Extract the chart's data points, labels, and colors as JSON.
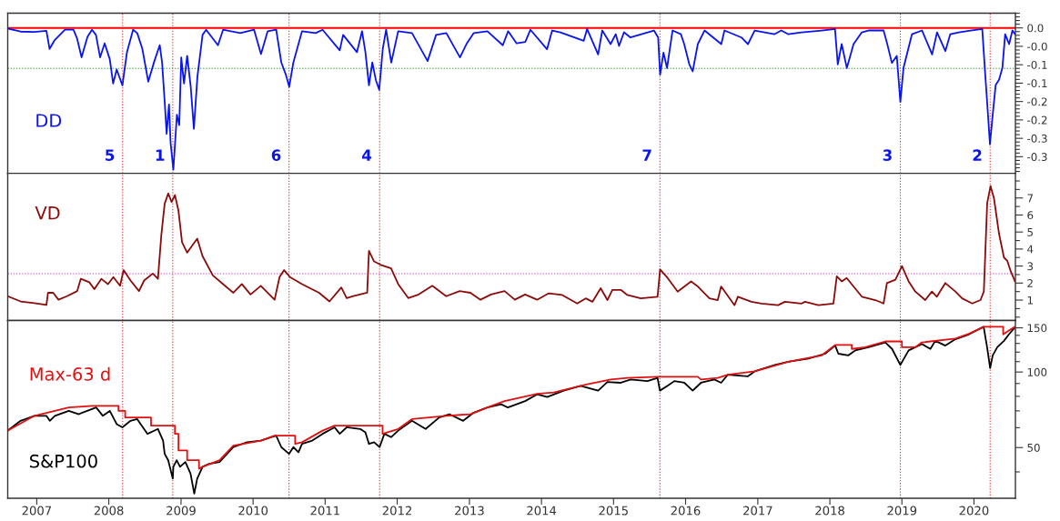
{
  "chart_data": [
    {
      "type": "line",
      "xlim": [
        "2006-08-07",
        "2020-07-29"
      ],
      "ylim": [
        -0.395,
        0.04
      ],
      "tick_labels": "y",
      "yticks": [
        {
          "value": 0.04,
          "label": null
        },
        {
          "value": 0.03,
          "label": null
        },
        {
          "value": 0.02,
          "label": null
        },
        {
          "value": 0.01,
          "label": null
        },
        {
          "value": 0,
          "label": "0.0"
        },
        {
          "value": -0.01,
          "label": null
        },
        {
          "value": -0.02,
          "label": null
        },
        {
          "value": -0.03,
          "label": null
        },
        {
          "value": -0.04,
          "label": null
        },
        {
          "value": -0.05,
          "label": "-0.0"
        },
        {
          "value": -0.06,
          "label": null
        },
        {
          "value": -0.07,
          "label": null
        },
        {
          "value": -0.08,
          "label": null
        },
        {
          "value": -0.09,
          "label": null
        },
        {
          "value": -0.1,
          "label": "-0.1"
        },
        {
          "value": -0.11,
          "label": null
        },
        {
          "value": -0.12,
          "label": null
        },
        {
          "value": -0.13,
          "label": null
        },
        {
          "value": -0.14,
          "label": null
        },
        {
          "value": -0.15,
          "label": "-0.1"
        },
        {
          "value": -0.16,
          "label": null
        },
        {
          "value": -0.17,
          "label": null
        },
        {
          "value": -0.18,
          "label": null
        },
        {
          "value": -0.19,
          "label": null
        },
        {
          "value": -0.2,
          "label": "-0.2"
        },
        {
          "value": -0.21,
          "label": null
        },
        {
          "value": -0.22,
          "label": null
        },
        {
          "value": -0.23,
          "label": null
        },
        {
          "value": -0.24,
          "label": null
        },
        {
          "value": -0.25,
          "label": "-0.2"
        },
        {
          "value": -0.26,
          "label": null
        },
        {
          "value": -0.27,
          "label": null
        },
        {
          "value": -0.28,
          "label": null
        },
        {
          "value": -0.29,
          "label": null
        },
        {
          "value": -0.3,
          "label": "-0.3"
        },
        {
          "value": -0.31,
          "label": null
        },
        {
          "value": -0.32,
          "label": null
        },
        {
          "value": -0.33,
          "label": null
        },
        {
          "value": -0.34,
          "label": null
        },
        {
          "value": -0.35,
          "label": "-0.3"
        },
        {
          "value": -0.36,
          "label": null
        },
        {
          "value": -0.37,
          "label": null
        },
        {
          "value": -0.38,
          "label": null
        },
        {
          "value": -0.39,
          "label": null
        }
      ],
      "ref_lines": [
        {
          "axis": "y",
          "value": 0,
          "color": "#ff0000",
          "line_style": "solid"
        },
        {
          "axis": "y",
          "value": -0.11,
          "color": "#2e9e2e",
          "line_style": "dotted"
        },
        {
          "axis": "x",
          "value": "2008-03-11",
          "label": "5",
          "color": "#e03c3c",
          "line_style": "dotted"
        },
        {
          "axis": "x",
          "value": "2008-11-20",
          "label": "1",
          "color": "#e03c3c",
          "line_style": "dotted"
        },
        {
          "axis": "x",
          "value": "2010-07-02",
          "label": "6",
          "color": "#e03c3c",
          "line_style": "dotted"
        },
        {
          "axis": "x",
          "value": "2011-10-04",
          "label": "4",
          "color": "#e03c3c",
          "line_style": "dotted"
        },
        {
          "axis": "x",
          "value": "2015-08-24",
          "label": "7",
          "color": "#e03c3c",
          "line_style": "dotted"
        },
        {
          "axis": "x",
          "value": "2018-12-24",
          "label": "3",
          "color": "#e03c3c",
          "line_style": "dotted"
        },
        {
          "axis": "x",
          "value": "2020-03-23",
          "label": "2",
          "color": "#e03c3c",
          "line_style": "dotted"
        }
      ],
      "series": [
        {
          "name": "DD",
          "color": "#0a14f0",
          "x": [
            "2006-08-07",
            "2006-10-11",
            "2006-12-19",
            "2007-02-19",
            "2007-03-07",
            "2007-04-02",
            "2007-05-24",
            "2007-07-06",
            "2007-07-24",
            "2007-08-16",
            "2007-09-15",
            "2007-10-08",
            "2007-10-28",
            "2007-11-18",
            "2007-12-11",
            "2008-01-06",
            "2008-01-23",
            "2008-02-10",
            "2008-03-10",
            "2008-04-02",
            "2008-05-03",
            "2008-05-24",
            "2008-06-19",
            "2008-07-19",
            "2008-08-19",
            "2008-09-15",
            "2008-09-27",
            "2008-10-11",
            "2008-10-20",
            "2008-11-01",
            "2008-11-09",
            "2008-11-23",
            "2008-12-11",
            "2008-12-23",
            "2009-01-02",
            "2009-01-16",
            "2009-02-01",
            "2009-02-19",
            "2009-03-07",
            "2009-03-25",
            "2009-04-20",
            "2009-05-08",
            "2009-07-07",
            "2009-08-02",
            "2009-10-28",
            "2010-01-06",
            "2010-02-10",
            "2010-03-16",
            "2010-04-28",
            "2010-05-24",
            "2010-06-16",
            "2010-07-03",
            "2010-07-24",
            "2010-09-06",
            "2010-11-14",
            "2010-12-19",
            "2011-03-16",
            "2011-04-02",
            "2011-06-11",
            "2011-07-07",
            "2011-07-24",
            "2011-08-11",
            "2011-08-28",
            "2011-09-15",
            "2011-10-02",
            "2011-10-20",
            "2011-11-06",
            "2011-12-02",
            "2012-01-06",
            "2012-03-16",
            "2012-06-03",
            "2012-07-16",
            "2012-09-06",
            "2012-11-14",
            "2012-12-19",
            "2013-01-23",
            "2013-04-02",
            "2013-06-19",
            "2013-07-16",
            "2013-08-28",
            "2013-10-11",
            "2013-11-06",
            "2014-01-29",
            "2014-02-24",
            "2014-04-07",
            "2014-08-03",
            "2014-08-20",
            "2014-10-15",
            "2014-11-05",
            "2014-12-17",
            "2015-01-12",
            "2015-01-29",
            "2015-02-23",
            "2015-03-28",
            "2015-07-25",
            "2015-08-15",
            "2015-08-25",
            "2015-09-11",
            "2015-09-29",
            "2015-10-27",
            "2015-12-08",
            "2015-12-25",
            "2016-01-20",
            "2016-02-06",
            "2016-03-03",
            "2016-04-06",
            "2016-06-30",
            "2016-07-16",
            "2016-10-10",
            "2016-11-12",
            "2016-12-16",
            "2017-03-27",
            "2017-04-30",
            "2017-06-03",
            "2017-08-10",
            "2017-11-20",
            "2018-01-27",
            "2018-02-10",
            "2018-03-02",
            "2018-03-28",
            "2018-05-01",
            "2018-06-12",
            "2018-07-15",
            "2018-09-30",
            "2018-10-17",
            "2018-11-11",
            "2018-12-06",
            "2018-12-24",
            "2019-01-09",
            "2019-02-21",
            "2019-04-13",
            "2019-06-03",
            "2019-06-28",
            "2019-08-09",
            "2019-09-03",
            "2019-10-16",
            "2019-12-14",
            "2020-02-12",
            "2020-02-26",
            "2020-03-10",
            "2020-03-22",
            "2020-04-03",
            "2020-04-20",
            "2020-05-07",
            "2020-05-24",
            "2020-06-07",
            "2020-06-27",
            "2020-07-14",
            "2020-07-27"
          ],
          "values": [
            -0.002,
            -0.01,
            -0.011,
            -0.008,
            -0.057,
            -0.033,
            -0.005,
            -0.005,
            -0.028,
            -0.08,
            -0.024,
            -0.005,
            -0.019,
            -0.08,
            -0.042,
            -0.085,
            -0.151,
            -0.113,
            -0.156,
            -0.066,
            -0.005,
            -0.014,
            -0.057,
            -0.146,
            -0.09,
            -0.047,
            -0.094,
            -0.208,
            -0.288,
            -0.208,
            -0.312,
            -0.385,
            -0.236,
            -0.264,
            -0.08,
            -0.151,
            -0.076,
            -0.16,
            -0.274,
            -0.132,
            -0.019,
            -0.005,
            -0.047,
            -0.005,
            -0.014,
            -0.005,
            -0.071,
            -0.009,
            -0.005,
            -0.094,
            -0.127,
            -0.16,
            -0.094,
            -0.009,
            -0.014,
            -0.005,
            -0.061,
            -0.019,
            -0.066,
            -0.009,
            -0.066,
            -0.156,
            -0.094,
            -0.142,
            -0.168,
            -0.057,
            -0.005,
            -0.094,
            -0.009,
            -0.014,
            -0.09,
            -0.019,
            -0.014,
            -0.08,
            -0.042,
            -0.014,
            -0.009,
            -0.047,
            -0.009,
            -0.042,
            -0.038,
            -0.005,
            -0.058,
            -0.007,
            -0.012,
            -0.035,
            -0.003,
            -0.072,
            -0.007,
            -0.044,
            -0.017,
            -0.049,
            -0.012,
            -0.026,
            -0.007,
            -0.026,
            -0.127,
            -0.067,
            -0.109,
            -0.007,
            -0.017,
            -0.044,
            -0.099,
            -0.118,
            -0.044,
            -0.007,
            -0.044,
            -0.007,
            -0.026,
            -0.044,
            -0.007,
            -0.017,
            -0.007,
            -0.017,
            -0.012,
            -0.007,
            -0.003,
            -0.099,
            -0.044,
            -0.109,
            -0.044,
            -0.012,
            -0.007,
            -0.007,
            -0.04,
            -0.095,
            -0.076,
            -0.201,
            -0.109,
            -0.017,
            -0.007,
            -0.072,
            -0.012,
            -0.063,
            -0.017,
            -0.012,
            -0.007,
            -0.003,
            -0.118,
            -0.219,
            -0.316,
            -0.247,
            -0.155,
            -0.141,
            -0.109,
            -0.017,
            -0.044,
            -0.007,
            -0.017
          ]
        }
      ]
    },
    {
      "type": "line",
      "xlim": [
        "2006-08-07",
        "2020-07-29"
      ],
      "ylim": [
        -0.2,
        8.45
      ],
      "tick_labels": "y",
      "yticks": [
        {
          "value": 0,
          "label": null
        },
        {
          "value": 0.5,
          "label": null
        },
        1,
        {
          "value": 1.5,
          "label": null
        },
        2,
        {
          "value": 2.5,
          "label": null
        },
        3,
        {
          "value": 3.5,
          "label": null
        },
        4,
        {
          "value": 4.5,
          "label": null
        },
        5,
        {
          "value": 5.5,
          "label": null
        },
        6,
        {
          "value": 6.5,
          "label": null
        },
        7,
        {
          "value": 7.5,
          "label": null
        },
        {
          "value": 8,
          "label": null
        }
      ],
      "ref_lines": [
        {
          "axis": "y",
          "value": 2.55,
          "color": "#d040d0",
          "line_style": "dotted"
        },
        {
          "axis": "x",
          "value": "2008-03-11",
          "color": "#e03c3c",
          "line_style": "dotted"
        },
        {
          "axis": "x",
          "value": "2008-11-20",
          "color": "#e03c3c",
          "line_style": "dotted"
        },
        {
          "axis": "x",
          "value": "2010-07-02",
          "color": "#e03c3c",
          "line_style": "dotted"
        },
        {
          "axis": "x",
          "value": "2011-10-04",
          "color": "#e03c3c",
          "line_style": "dotted"
        },
        {
          "axis": "x",
          "value": "2015-08-24",
          "color": "#e03c3c",
          "line_style": "dotted"
        },
        {
          "axis": "x",
          "value": "2018-12-24",
          "color": "#e03c3c",
          "line_style": "dotted"
        },
        {
          "axis": "x",
          "value": "2020-03-23",
          "color": "#e03c3c",
          "line_style": "dotted"
        }
      ],
      "series": [
        {
          "name": "VD",
          "color": "#8b0a0a",
          "x": [
            "2006-08-07",
            "2006-10-11",
            "2006-12-20",
            "2007-02-19",
            "2007-02-27",
            "2007-03-25",
            "2007-04-21",
            "2007-06-03",
            "2007-07-25",
            "2007-08-12",
            "2007-09-24",
            "2007-10-20",
            "2007-11-24",
            "2007-12-28",
            "2008-01-24",
            "2008-02-27",
            "2008-03-16",
            "2008-04-20",
            "2008-06-02",
            "2008-06-28",
            "2008-08-11",
            "2008-09-06",
            "2008-09-23",
            "2008-10-10",
            "2008-10-28",
            "2008-11-14",
            "2008-12-01",
            "2008-12-19",
            "2009-01-06",
            "2009-02-01",
            "2009-02-26",
            "2009-03-24",
            "2009-04-20",
            "2009-06-11",
            "2009-08-02",
            "2009-09-23",
            "2009-11-05",
            "2009-12-19",
            "2010-02-09",
            "2010-04-20",
            "2010-05-15",
            "2010-06-07",
            "2010-07-07",
            "2010-09-06",
            "2010-12-01",
            "2011-01-23",
            "2011-03-24",
            "2011-04-20",
            "2011-05-24",
            "2011-08-02",
            "2011-08-11",
            "2011-09-06",
            "2011-10-10",
            "2011-12-01",
            "2012-01-06",
            "2012-02-26",
            "2012-04-19",
            "2012-06-27",
            "2012-09-05",
            "2012-11-13",
            "2013-01-06",
            "2013-02-26",
            "2013-04-20",
            "2013-06-28",
            "2013-08-19",
            "2013-10-10",
            "2013-12-10",
            "2014-02-07",
            "2014-04-16",
            "2014-07-01",
            "2014-08-13",
            "2014-09-16",
            "2014-10-28",
            "2014-12-01",
            "2014-12-26",
            "2015-02-07",
            "2015-03-12",
            "2015-05-19",
            "2015-08-12",
            "2015-08-25",
            "2015-10-02",
            "2015-11-22",
            "2016-01-29",
            "2016-03-03",
            "2016-05-01",
            "2016-06-12",
            "2016-06-29",
            "2016-09-05",
            "2016-09-22",
            "2016-11-29",
            "2017-01-20",
            "2017-04-14",
            "2017-05-18",
            "2017-08-11",
            "2017-08-28",
            "2017-11-04",
            "2018-01-19",
            "2018-02-05",
            "2018-03-02",
            "2018-03-27",
            "2018-06-12",
            "2018-08-19",
            "2018-09-30",
            "2018-10-17",
            "2018-11-29",
            "2019-01-01",
            "2019-02-04",
            "2019-03-10",
            "2019-04-29",
            "2019-06-02",
            "2019-06-27",
            "2019-08-09",
            "2019-09-29",
            "2019-11-02",
            "2019-12-23",
            "2020-02-03",
            "2020-02-20",
            "2020-03-08",
            "2020-03-25",
            "2020-04-11",
            "2020-05-07",
            "2020-06-01",
            "2020-06-18",
            "2020-07-05",
            "2020-07-27"
          ],
          "values": [
            1.23,
            0.92,
            0.82,
            0.71,
            1.43,
            1.43,
            1.02,
            1.23,
            1.53,
            2.25,
            2.05,
            1.64,
            2.25,
            1.94,
            2.35,
            1.84,
            2.76,
            2.15,
            1.53,
            2.15,
            2.56,
            2.25,
            4.81,
            6.66,
            7.27,
            6.76,
            7.17,
            6.25,
            4.4,
            3.79,
            4.2,
            4.61,
            3.58,
            2.45,
            1.94,
            1.43,
            1.94,
            1.33,
            1.84,
            1.02,
            2.35,
            2.76,
            2.35,
            1.94,
            1.43,
            0.92,
            1.74,
            1.12,
            1.23,
            1.43,
            3.89,
            3.27,
            3.07,
            2.86,
            1.94,
            1.12,
            1.33,
            1.84,
            1.23,
            1.53,
            1.43,
            1.02,
            1.33,
            1.53,
            1.02,
            1.33,
            1.02,
            1.4,
            1.3,
            0.8,
            1.1,
            0.9,
            1.7,
            1.0,
            1.6,
            1.6,
            1.3,
            1.1,
            1.2,
            2.8,
            2.3,
            1.5,
            2.1,
            1.8,
            1.1,
            1.0,
            1.8,
            0.7,
            1.2,
            0.9,
            0.8,
            0.7,
            0.9,
            0.8,
            0.9,
            0.7,
            0.8,
            2.4,
            2.1,
            2.3,
            1.2,
            1.0,
            0.8,
            2.0,
            2.2,
            3.0,
            2.1,
            1.5,
            1.0,
            1.5,
            1.2,
            2.0,
            1.5,
            1.1,
            0.8,
            1.0,
            1.5,
            6.7,
            7.7,
            7.0,
            4.9,
            3.5,
            3.3,
            2.7,
            2.1
          ]
        }
      ]
    },
    {
      "type": "line",
      "xlim": [
        "2006-08-07",
        "2020-07-29"
      ],
      "ylim": [
        31.4,
        160.4
      ],
      "log": true,
      "xticks": [
        "2007",
        "2008",
        "2009",
        "2010",
        "2011",
        "2012",
        "2013",
        "2014",
        "2015",
        "2016",
        "2017",
        "2018",
        "2019",
        "2020"
      ],
      "yticks": [
        {
          "value": 40,
          "label": null
        },
        50,
        {
          "value": 60,
          "label": null
        },
        {
          "value": 70,
          "label": null
        },
        {
          "value": 80,
          "label": null
        },
        {
          "value": 90,
          "label": null
        },
        100,
        {
          "value": 110,
          "label": null
        },
        {
          "value": 120,
          "label": null
        },
        {
          "value": 130,
          "label": null
        },
        {
          "value": 140,
          "label": null
        },
        150
      ],
      "ref_lines": [
        {
          "axis": "x",
          "value": "2008-03-11",
          "color": "#e03c3c",
          "line_style": "dotted"
        },
        {
          "axis": "x",
          "value": "2008-11-20",
          "color": "#e03c3c",
          "line_style": "dotted"
        },
        {
          "axis": "x",
          "value": "2010-07-02",
          "color": "#e03c3c",
          "line_style": "dotted"
        },
        {
          "axis": "x",
          "value": "2011-10-04",
          "color": "#e03c3c",
          "line_style": "dotted"
        },
        {
          "axis": "x",
          "value": "2015-08-24",
          "color": "#e03c3c",
          "line_style": "dotted"
        },
        {
          "axis": "x",
          "value": "2018-12-24",
          "color": "#e03c3c",
          "line_style": "dotted"
        },
        {
          "axis": "x",
          "value": "2020-03-23",
          "color": "#e03c3c",
          "line_style": "dotted"
        }
      ],
      "series": [
        {
          "name": "S&P100",
          "color": "#000000",
          "x": [
            "2006-08-07",
            "2006-10-11",
            "2006-12-20",
            "2007-02-19",
            "2007-03-08",
            "2007-04-03",
            "2007-06-12",
            "2007-08-03",
            "2007-08-20",
            "2007-10-29",
            "2007-12-02",
            "2008-01-06",
            "2008-02-10",
            "2008-03-10",
            "2008-04-20",
            "2008-05-24",
            "2008-07-15",
            "2008-09-06",
            "2008-10-02",
            "2008-10-10",
            "2008-10-28",
            "2008-11-20",
            "2008-11-23",
            "2008-12-10",
            "2008-12-27",
            "2009-01-23",
            "2009-02-18",
            "2009-03-09",
            "2009-03-24",
            "2009-04-20",
            "2009-05-24",
            "2009-07-15",
            "2009-09-23",
            "2009-12-01",
            "2010-02-09",
            "2010-04-02",
            "2010-04-28",
            "2010-05-24",
            "2010-07-02",
            "2010-07-24",
            "2010-08-19",
            "2010-09-06",
            "2010-10-28",
            "2010-12-19",
            "2011-02-18",
            "2011-03-16",
            "2011-04-20",
            "2011-06-28",
            "2011-07-24",
            "2011-08-11",
            "2011-09-06",
            "2011-10-04",
            "2011-10-28",
            "2011-12-01",
            "2012-01-06",
            "2012-03-16",
            "2012-05-24",
            "2012-08-01",
            "2012-09-22",
            "2012-11-30",
            "2013-01-23",
            "2013-04-02",
            "2013-06-11",
            "2013-07-15",
            "2013-10-10",
            "2013-12-10",
            "2014-01-30",
            "2014-04-24",
            "2014-07-18",
            "2014-10-15",
            "2014-12-01",
            "2015-02-07",
            "2015-03-29",
            "2015-06-22",
            "2015-08-12",
            "2015-08-24",
            "2015-10-02",
            "2015-11-05",
            "2015-12-26",
            "2016-02-06",
            "2016-03-19",
            "2016-05-26",
            "2016-06-29",
            "2016-08-02",
            "2016-11-12",
            "2016-12-16",
            "2017-03-28",
            "2017-06-04",
            "2017-09-14",
            "2017-12-08",
            "2018-01-28",
            "2018-02-13",
            "2018-04-05",
            "2018-05-09",
            "2018-07-16",
            "2018-10-09",
            "2018-11-12",
            "2018-12-24",
            "2019-02-04",
            "2019-04-12",
            "2019-05-25",
            "2019-06-19",
            "2019-08-09",
            "2019-09-29",
            "2019-12-06",
            "2020-02-19",
            "2020-03-08",
            "2020-03-23",
            "2020-04-05",
            "2020-04-28",
            "2020-06-01",
            "2020-06-26",
            "2020-07-27"
          ],
          "values": [
            58.4,
            63.9,
            66.9,
            66.9,
            63.9,
            66.9,
            70.0,
            67.9,
            68.9,
            72.2,
            66.9,
            70.0,
            62.0,
            60.2,
            63.9,
            64.9,
            56.7,
            59.3,
            53.3,
            47.2,
            44.5,
            37.6,
            41.9,
            44.5,
            41.9,
            43.8,
            39.4,
            32.8,
            37.6,
            41.9,
            43.1,
            43.8,
            50.2,
            52.5,
            53.3,
            55.0,
            55.8,
            50.2,
            47.2,
            50.2,
            47.9,
            51.7,
            53.3,
            56.7,
            60.2,
            56.7,
            60.2,
            59.3,
            57.5,
            51.7,
            52.5,
            50.2,
            56.7,
            55.0,
            58.4,
            63.9,
            59.3,
            65.9,
            67.9,
            63.9,
            68.9,
            72.2,
            74.4,
            72.2,
            76.6,
            81.5,
            79.5,
            84.3,
            88.1,
            84.3,
            91.2,
            90.6,
            93.4,
            92.0,
            94.8,
            84.3,
            88.1,
            92.0,
            90.6,
            84.3,
            90.6,
            93.4,
            90.6,
            97.6,
            96.2,
            100.6,
            106.7,
            109.9,
            113.2,
            118.3,
            127.4,
            118.3,
            116.5,
            121.9,
            125.5,
            131.2,
            123.6,
            106.7,
            121.9,
            129.3,
            123.6,
            133.1,
            127.4,
            135.1,
            141.2,
            151.5,
            125.0,
            103.6,
            116.5,
            125.5,
            133.1,
            141.2,
            151.0
          ]
        },
        {
          "name": "Max-63 d",
          "color": "#e01010",
          "x": [
            "2006-08-07",
            "2006-12-20",
            "2007-06-12",
            "2007-10-11",
            "2008-02-19",
            "2008-02-19",
            "2008-03-24",
            "2008-03-24",
            "2008-08-02",
            "2008-08-02",
            "2008-12-01",
            "2008-12-01",
            "2008-12-19",
            "2008-12-19",
            "2009-02-01",
            "2009-02-01",
            "2009-04-02",
            "2009-04-02",
            "2009-04-20",
            "2009-07-15",
            "2009-09-23",
            "2010-02-09",
            "2010-04-20",
            "2010-08-02",
            "2010-08-02",
            "2010-09-06",
            "2010-12-19",
            "2011-02-18",
            "2011-10-19",
            "2011-10-19",
            "2012-01-06",
            "2012-03-16",
            "2012-09-05",
            "2013-01-06",
            "2013-04-02",
            "2013-06-28",
            "2013-12-10",
            "2014-03-04",
            "2014-08-21",
            "2014-12-18",
            "2015-03-12",
            "2015-08-12",
            "2016-03-03",
            "2016-03-19",
            "2016-06-12",
            "2016-08-02",
            "2016-12-16",
            "2017-06-04",
            "2017-11-21",
            "2018-01-28",
            "2018-04-22",
            "2018-04-22",
            "2018-06-29",
            "2018-10-09",
            "2019-01-01",
            "2019-01-01",
            "2019-03-10",
            "2019-04-12",
            "2019-09-29",
            "2019-12-06",
            "2020-02-20",
            "2020-05-28",
            "2020-05-28",
            "2020-06-26",
            "2020-07-27"
          ],
          "values": [
            58.4,
            66.9,
            72.2,
            73.3,
            73.3,
            70.0,
            70.0,
            65.9,
            65.9,
            61.1,
            61.1,
            56.7,
            56.7,
            48.7,
            48.7,
            44.5,
            44.5,
            41.2,
            41.9,
            44.5,
            50.9,
            53.3,
            55.8,
            55.8,
            51.7,
            52.5,
            58.4,
            61.1,
            61.1,
            56.7,
            59.3,
            64.9,
            66.9,
            67.9,
            72.2,
            76.6,
            81.8,
            82.9,
            89.3,
            93.4,
            94.8,
            95.7,
            95.7,
            93.4,
            94.8,
            97.6,
            100.6,
            109.9,
            116.5,
            128.1,
            128.1,
            123.6,
            125.5,
            132.4,
            132.4,
            125.5,
            125.5,
            131.2,
            135.9,
            142.0,
            151.5,
            151.5,
            141.2,
            146.3,
            151.5
          ]
        }
      ]
    }
  ]
}
